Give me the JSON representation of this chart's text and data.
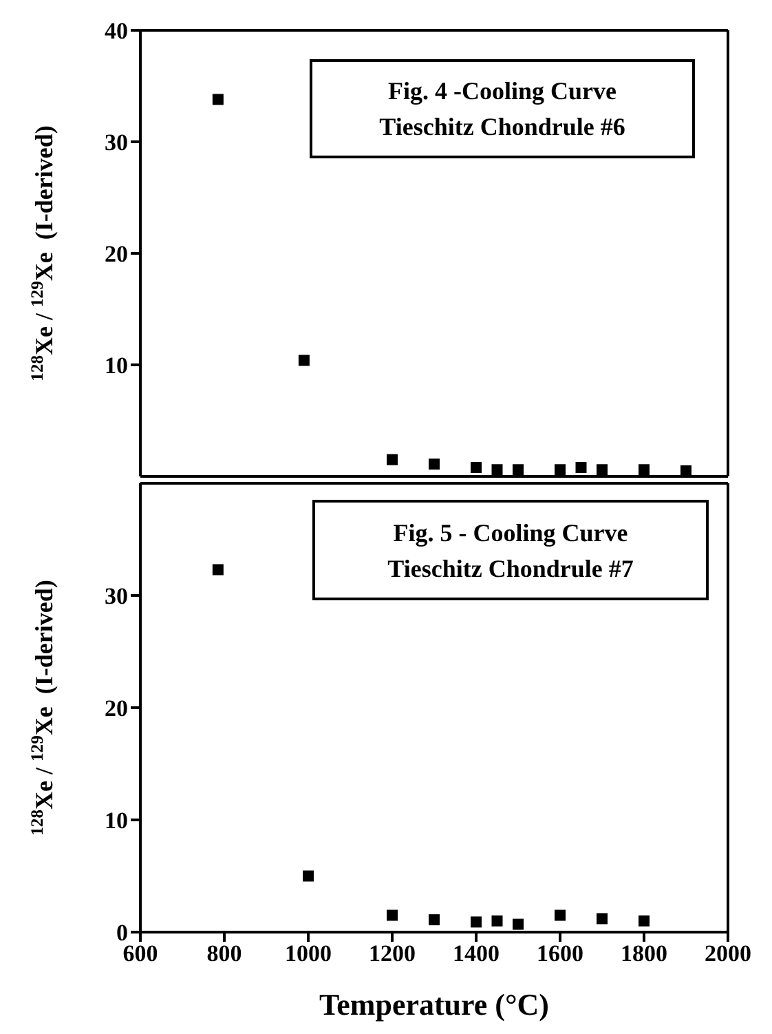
{
  "chart_data": [
    {
      "type": "scatter",
      "ylabel": "$^{128}$Xe / $^{129}$Xe  (I-derived)",
      "annotations": [
        "Fig. 4 -Cooling Curve\nTieschitz Chondrule #6"
      ],
      "x": [
        785,
        990,
        1200,
        1300,
        1400,
        1450,
        1500,
        1600,
        1650,
        1700,
        1800,
        1900
      ],
      "series": [
        {
          "color": "#000000",
          "values": [
            33.8,
            10.4,
            1.5,
            1.1,
            0.8,
            0.6,
            0.6,
            0.6,
            0.8,
            0.6,
            0.6,
            0.5
          ]
        }
      ],
      "marker": "square",
      "xlim": [
        600,
        2000
      ],
      "ylim": [
        0,
        40
      ],
      "yticks": [
        10,
        20,
        30,
        40
      ],
      "tick_labels": "y"
    },
    {
      "type": "scatter",
      "xlabel": "Temperature (°C)",
      "ylabel": "$^{128}$Xe / $^{129}$Xe  (I-derived)",
      "annotations": [
        "Fig. 5 - Cooling Curve\nTieschitz Chondrule #7"
      ],
      "x": [
        785,
        1000,
        1200,
        1300,
        1400,
        1450,
        1500,
        1600,
        1700,
        1800
      ],
      "series": [
        {
          "color": "#000000",
          "values": [
            32.3,
            5.0,
            1.5,
            1.1,
            0.9,
            1.0,
            0.7,
            1.5,
            1.2,
            1.0
          ]
        }
      ],
      "marker": "square",
      "xlim": [
        600,
        2000
      ],
      "xticks": [
        600,
        800,
        1000,
        1200,
        1400,
        1600,
        1800,
        2000
      ],
      "ylim": [
        0,
        40
      ],
      "yticks": [
        0,
        10,
        20,
        30
      ]
    }
  ]
}
